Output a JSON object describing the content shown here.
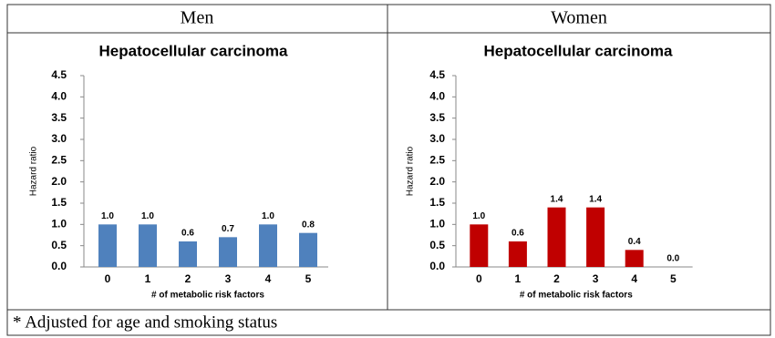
{
  "table": {
    "headers": [
      "Men",
      "Women"
    ],
    "footnote": "* Adjusted for age and smoking status"
  },
  "chart_data": [
    {
      "type": "bar",
      "title": "Hepatocellular carcinoma",
      "x_label": "# of metabolic risk factors",
      "y_label": "Hazard ratio",
      "categories": [
        "0",
        "1",
        "2",
        "3",
        "4",
        "5"
      ],
      "values": [
        1.0,
        1.0,
        0.6,
        0.7,
        1.0,
        0.8
      ],
      "value_labels": [
        "1.0",
        "1.0",
        "0.6",
        "0.7",
        "1.0",
        "0.8"
      ],
      "color": "#4f81bd",
      "ylim": [
        0,
        4.5
      ],
      "yticks": [
        {
          "value": 0,
          "label": "0.0"
        },
        {
          "value": 0.5,
          "label": "0.5"
        },
        {
          "value": 1,
          "label": "1.0"
        },
        {
          "value": 1.5,
          "label": "1.5"
        },
        {
          "value": 2,
          "label": "2.0"
        },
        {
          "value": 2.5,
          "label": "2.5"
        },
        {
          "value": 3,
          "label": "3.0"
        },
        {
          "value": 3.5,
          "label": "3.5"
        },
        {
          "value": 4,
          "label": "4.0"
        },
        {
          "value": 4.5,
          "label": "4.5"
        }
      ]
    },
    {
      "type": "bar",
      "title": "Hepatocellular carcinoma",
      "x_label": "# of metabolic risk factors",
      "y_label": "Hazard ratio",
      "categories": [
        "0",
        "1",
        "2",
        "3",
        "4",
        "5"
      ],
      "values": [
        1.0,
        0.6,
        1.4,
        1.4,
        0.4,
        0.0
      ],
      "value_labels": [
        "1.0",
        "0.6",
        "1.4",
        "1.4",
        "0.4",
        "0.0"
      ],
      "color": "#c00000",
      "ylim": [
        0,
        4.5
      ],
      "yticks": [
        {
          "value": 0,
          "label": "0.0"
        },
        {
          "value": 0.5,
          "label": "0.5"
        },
        {
          "value": 1,
          "label": "1.0"
        },
        {
          "value": 1.5,
          "label": "1.5"
        },
        {
          "value": 2,
          "label": "2.0"
        },
        {
          "value": 2.5,
          "label": "2.5"
        },
        {
          "value": 3,
          "label": "3.0"
        },
        {
          "value": 3.5,
          "label": "3.5"
        },
        {
          "value": 4,
          "label": "4.0"
        },
        {
          "value": 4.5,
          "label": "4.5"
        }
      ]
    }
  ]
}
